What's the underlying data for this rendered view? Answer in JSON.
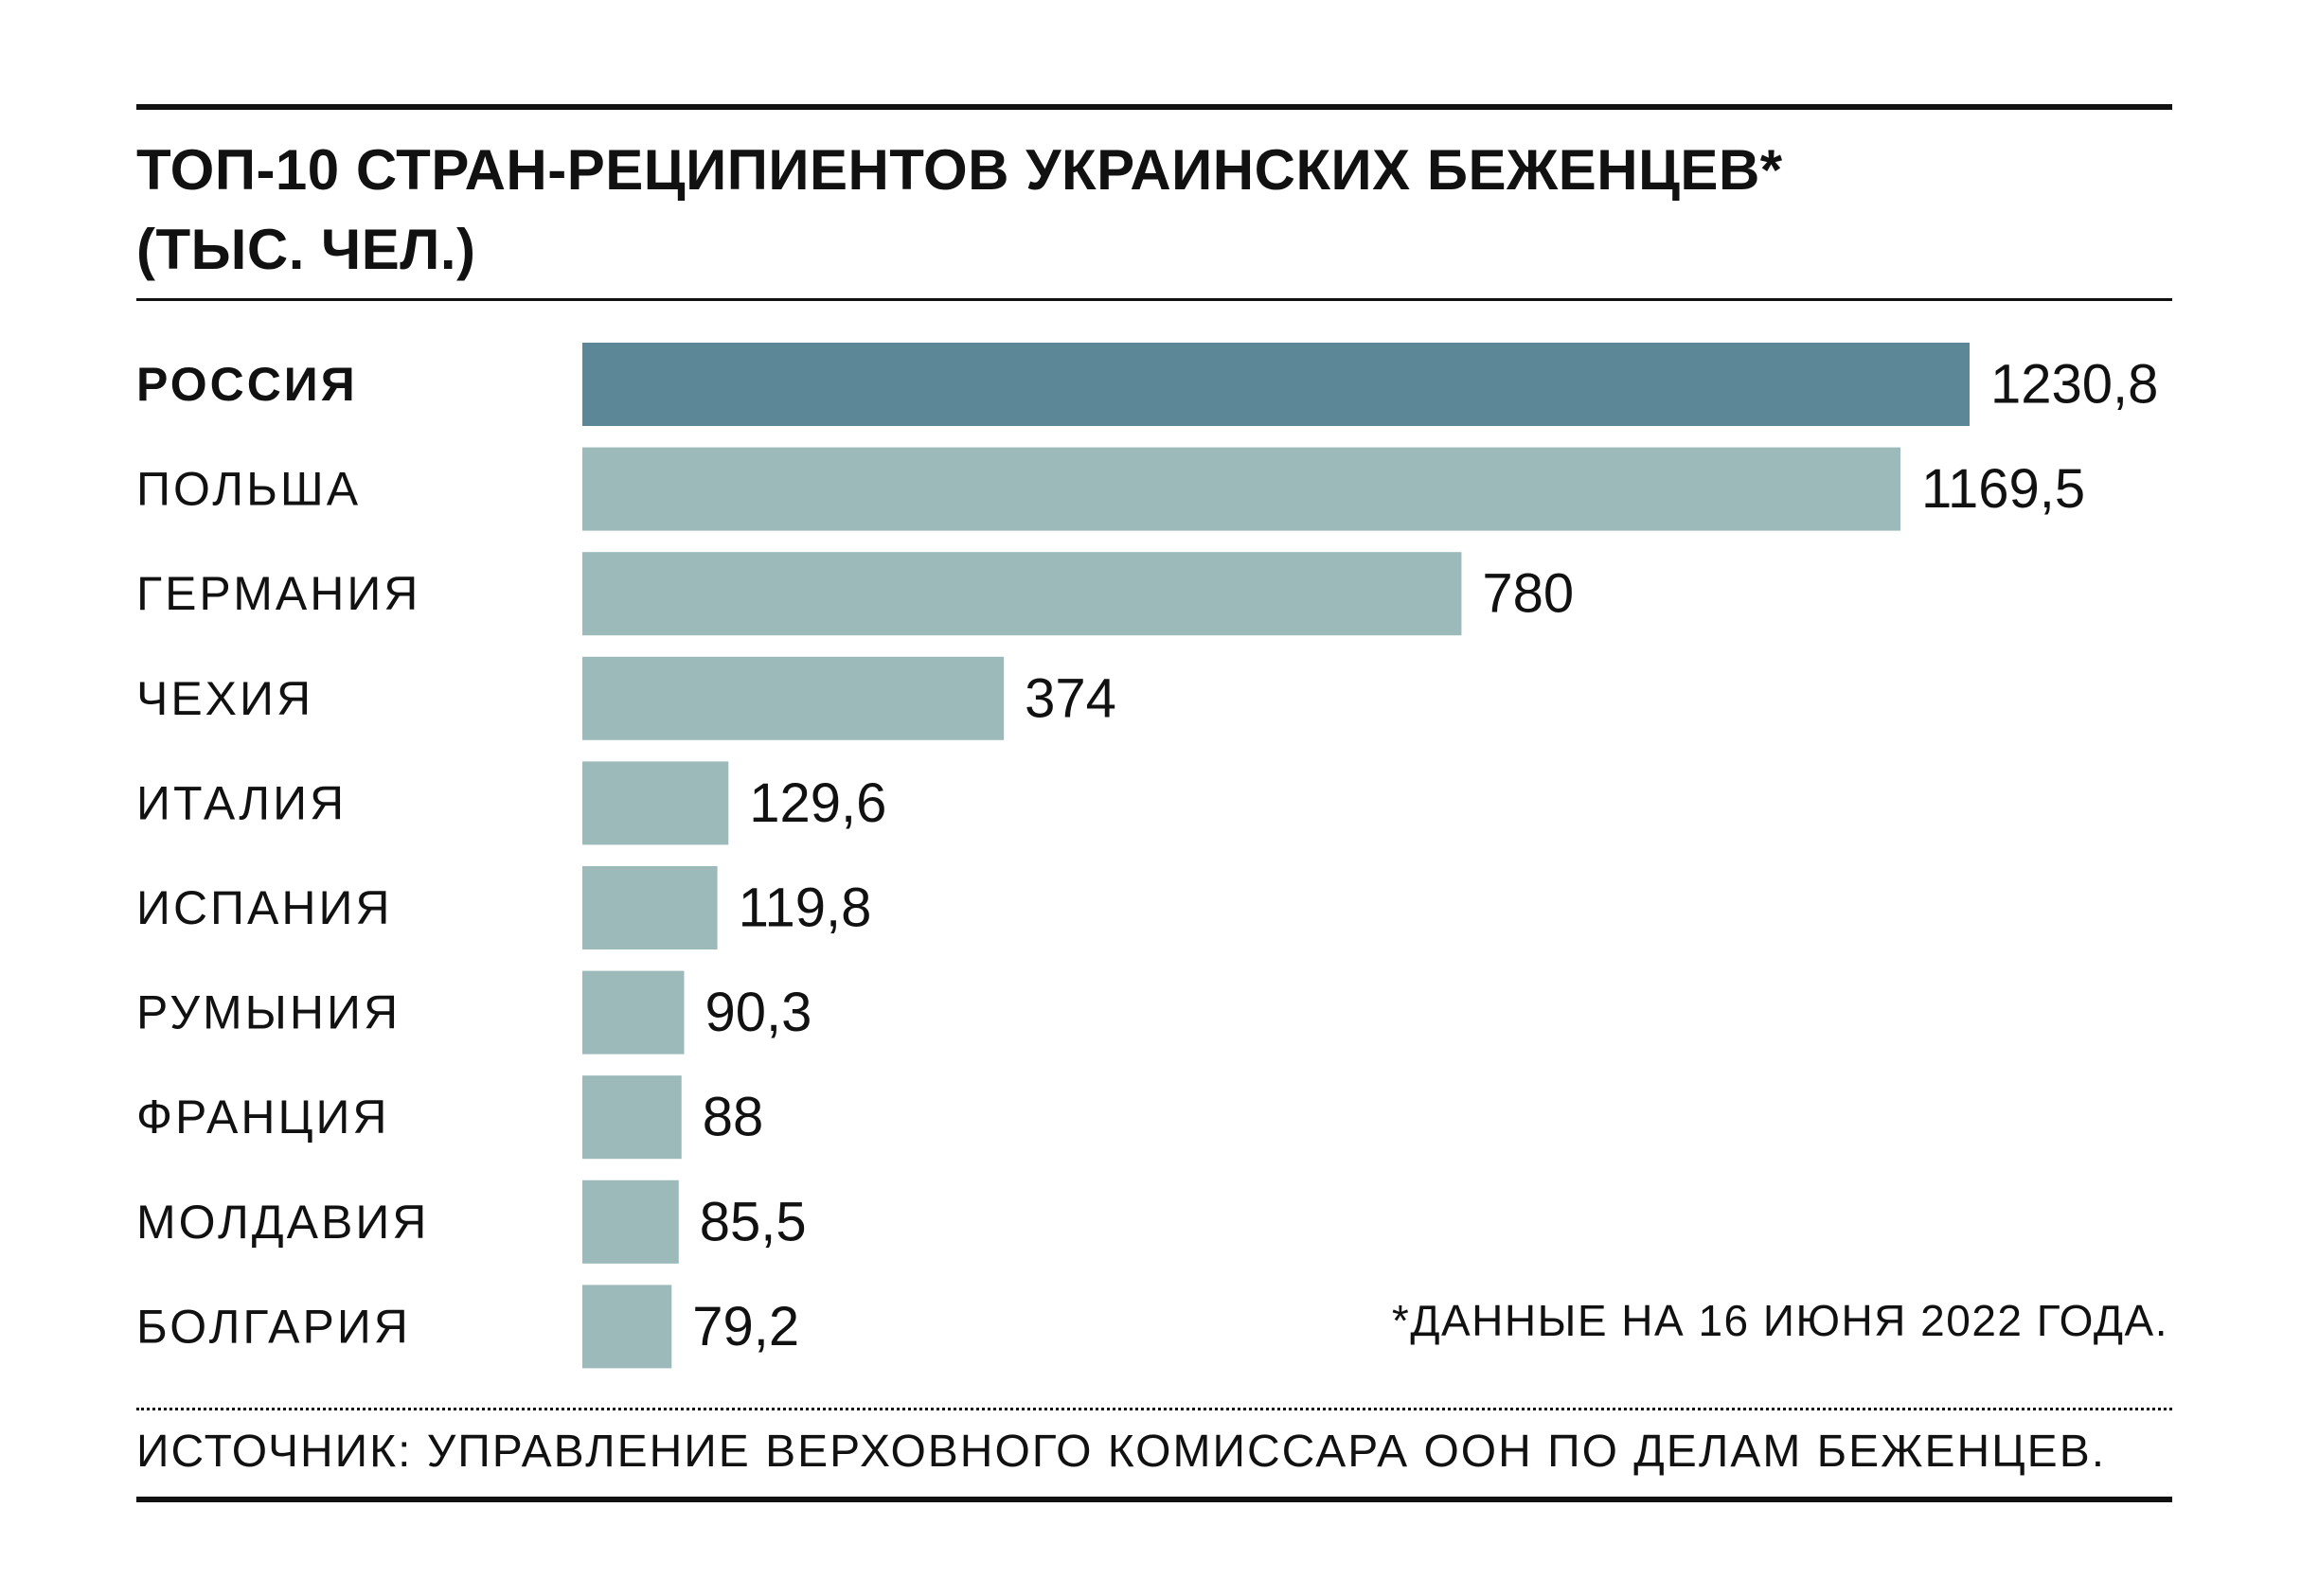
{
  "header": {
    "title_line1": "ТОП-10 СТРАН-РЕЦИПИЕНТОВ УКРАИНСКИХ БЕЖЕНЦЕВ*",
    "title_line2": "(ТЫС. ЧЕЛ.)"
  },
  "footer": {
    "note": "*ДАННЫЕ НА 16 ИЮНЯ 2022 ГОДА.",
    "source": "ИСТОЧНИК: УПРАВЛЕНИЕ ВЕРХОВНОГО КОМИССАРА ООН ПО ДЕЛАМ БЕЖЕНЦЕВ."
  },
  "colors": {
    "highlight_bar": "#5b8797",
    "regular_bar": "#9bbab9"
  },
  "chart_data": {
    "type": "bar",
    "orientation": "horizontal",
    "title": "ТОП-10 СТРАН-РЕЦИПИЕНТОВ УКРАИНСКИХ БЕЖЕНЦЕВ* (ТЫС. ЧЕЛ.)",
    "categories": [
      "РОССИЯ",
      "ПОЛЬША",
      "ГЕРМАНИЯ",
      "ЧЕХИЯ",
      "ИТАЛИЯ",
      "ИСПАНИЯ",
      "РУМЫНИЯ",
      "ФРАНЦИЯ",
      "МОЛДАВИЯ",
      "БОЛГАРИЯ"
    ],
    "values": [
      1230.8,
      1169.5,
      780,
      374,
      129.6,
      119.8,
      90.3,
      88,
      85.5,
      79.2
    ],
    "value_labels": [
      "1230,8",
      "1169,5",
      "780",
      "374",
      "129,6",
      "119,8",
      "90,3",
      "88",
      "85,5",
      "79,2"
    ],
    "highlight_index": 0,
    "xlim": [
      0,
      1230.8
    ],
    "xlabel": "",
    "ylabel": "",
    "grid": false,
    "legend": "none"
  }
}
